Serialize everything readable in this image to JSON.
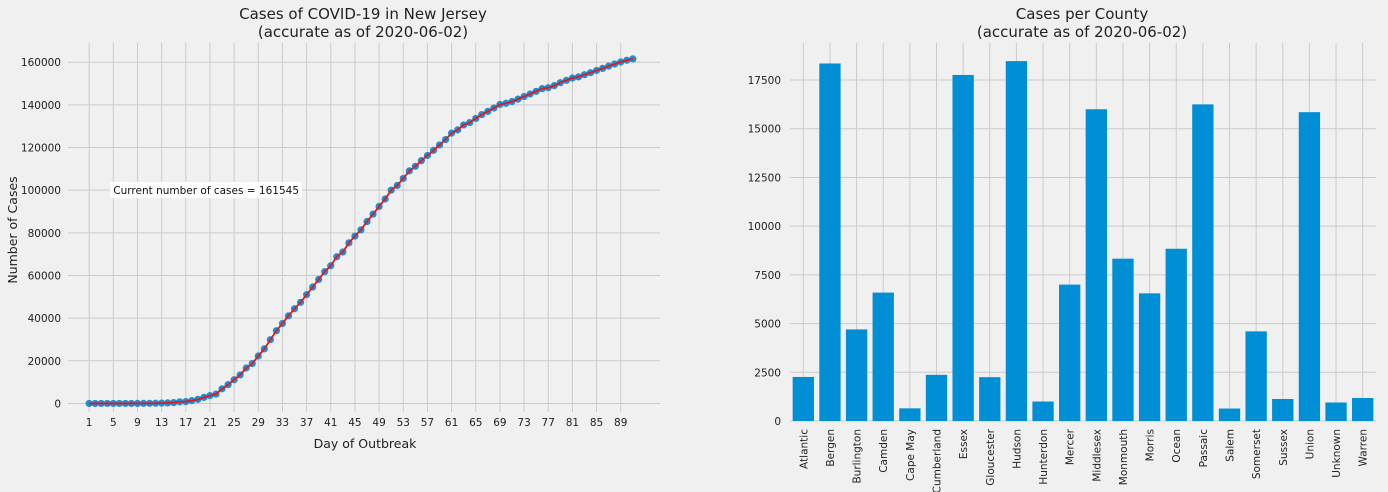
{
  "chart_data": [
    {
      "type": "line",
      "title": "Cases of COVID-19 in New Jersey",
      "subtitle": "(accurate as of 2020-06-02)",
      "xlabel": "Day of Outbreak",
      "ylabel": "Number of Cases",
      "xlim": [
        -2.5,
        95.5
      ],
      "ylim": [
        -4000,
        169000
      ],
      "xticks": [
        1,
        5,
        9,
        13,
        17,
        21,
        25,
        29,
        33,
        37,
        41,
        45,
        49,
        53,
        57,
        61,
        65,
        69,
        73,
        77,
        81,
        85,
        89
      ],
      "yticks": [
        0,
        20000,
        40000,
        60000,
        80000,
        100000,
        120000,
        140000,
        160000
      ],
      "grid": true,
      "annotation": {
        "text": "Current number of cases = 161545",
        "x": 5,
        "y": 100000
      },
      "colors": {
        "points": "#1f8fd4",
        "line": "#e5161c"
      },
      "series": [
        {
          "x": [
            1,
            2,
            3,
            4,
            5,
            6,
            7,
            8,
            9,
            10,
            11,
            12,
            13,
            14,
            15,
            16,
            17,
            18,
            19,
            20,
            21,
            22,
            23,
            24,
            25,
            26,
            27,
            28,
            29,
            30,
            31,
            32,
            33,
            34,
            35,
            36,
            37,
            38,
            39,
            40,
            41,
            42,
            43,
            44,
            45,
            46,
            47,
            48,
            49,
            50,
            51,
            52,
            53,
            54,
            55,
            56,
            57,
            58,
            59,
            60,
            61,
            62,
            63,
            64,
            65,
            66,
            67,
            68,
            69,
            70,
            71,
            72,
            73,
            74,
            75,
            76,
            77,
            78,
            79,
            80,
            81,
            82,
            83,
            84,
            85,
            86,
            87,
            88,
            89,
            90,
            91
          ],
          "y": [
            1,
            2,
            4,
            5,
            6,
            11,
            15,
            23,
            29,
            50,
            69,
            98,
            178,
            267,
            427,
            742,
            890,
            1327,
            1914,
            2844,
            3675,
            4402,
            6876,
            8825,
            11124,
            13386,
            16636,
            18696,
            22255,
            25590,
            29895,
            34124,
            37505,
            41090,
            44416,
            47437,
            51027,
            54588,
            58151,
            61850,
            64584,
            68824,
            71030,
            75317,
            78467,
            81420,
            85301,
            88806,
            92387,
            95865,
            99989,
            102196,
            105498,
            109038,
            111188,
            113856,
            116264,
            118652,
            121190,
            123717,
            126744,
            128269,
            130593,
            131705,
            133635,
            135454,
            136954,
            138532,
            140206,
            140743,
            141560,
            142704,
            143905,
            145089,
            146334,
            147593,
            148039,
            149013,
            150399,
            151472,
            152579,
            153104,
            154154,
            155092,
            156145,
            157087,
            158196,
            159163,
            160095,
            160918,
            161545
          ]
        }
      ]
    },
    {
      "type": "bar",
      "title": "Cases per County",
      "subtitle": "(accurate as of 2020-06-02)",
      "xlabel": "",
      "ylabel": "",
      "ylim": [
        0,
        19400
      ],
      "yticks": [
        0,
        2500,
        5000,
        7500,
        10000,
        12500,
        15000,
        17500
      ],
      "grid": true,
      "colors": {
        "bars": "#008fd5"
      },
      "categories": [
        "Atlantic",
        "Bergen",
        "Burlington",
        "Camden",
        "Cape May",
        "Cumberland",
        "Essex",
        "Gloucester",
        "Hudson",
        "Hunterdon",
        "Mercer",
        "Middlesex",
        "Monmouth",
        "Morris",
        "Ocean",
        "Passaic",
        "Salem",
        "Somerset",
        "Sussex",
        "Union",
        "Unknown",
        "Warren"
      ],
      "values": [
        2260,
        18350,
        4700,
        6590,
        650,
        2370,
        17760,
        2250,
        18470,
        1000,
        7000,
        16000,
        8330,
        6550,
        8840,
        16250,
        640,
        4600,
        1130,
        15850,
        950,
        1180
      ]
    }
  ]
}
